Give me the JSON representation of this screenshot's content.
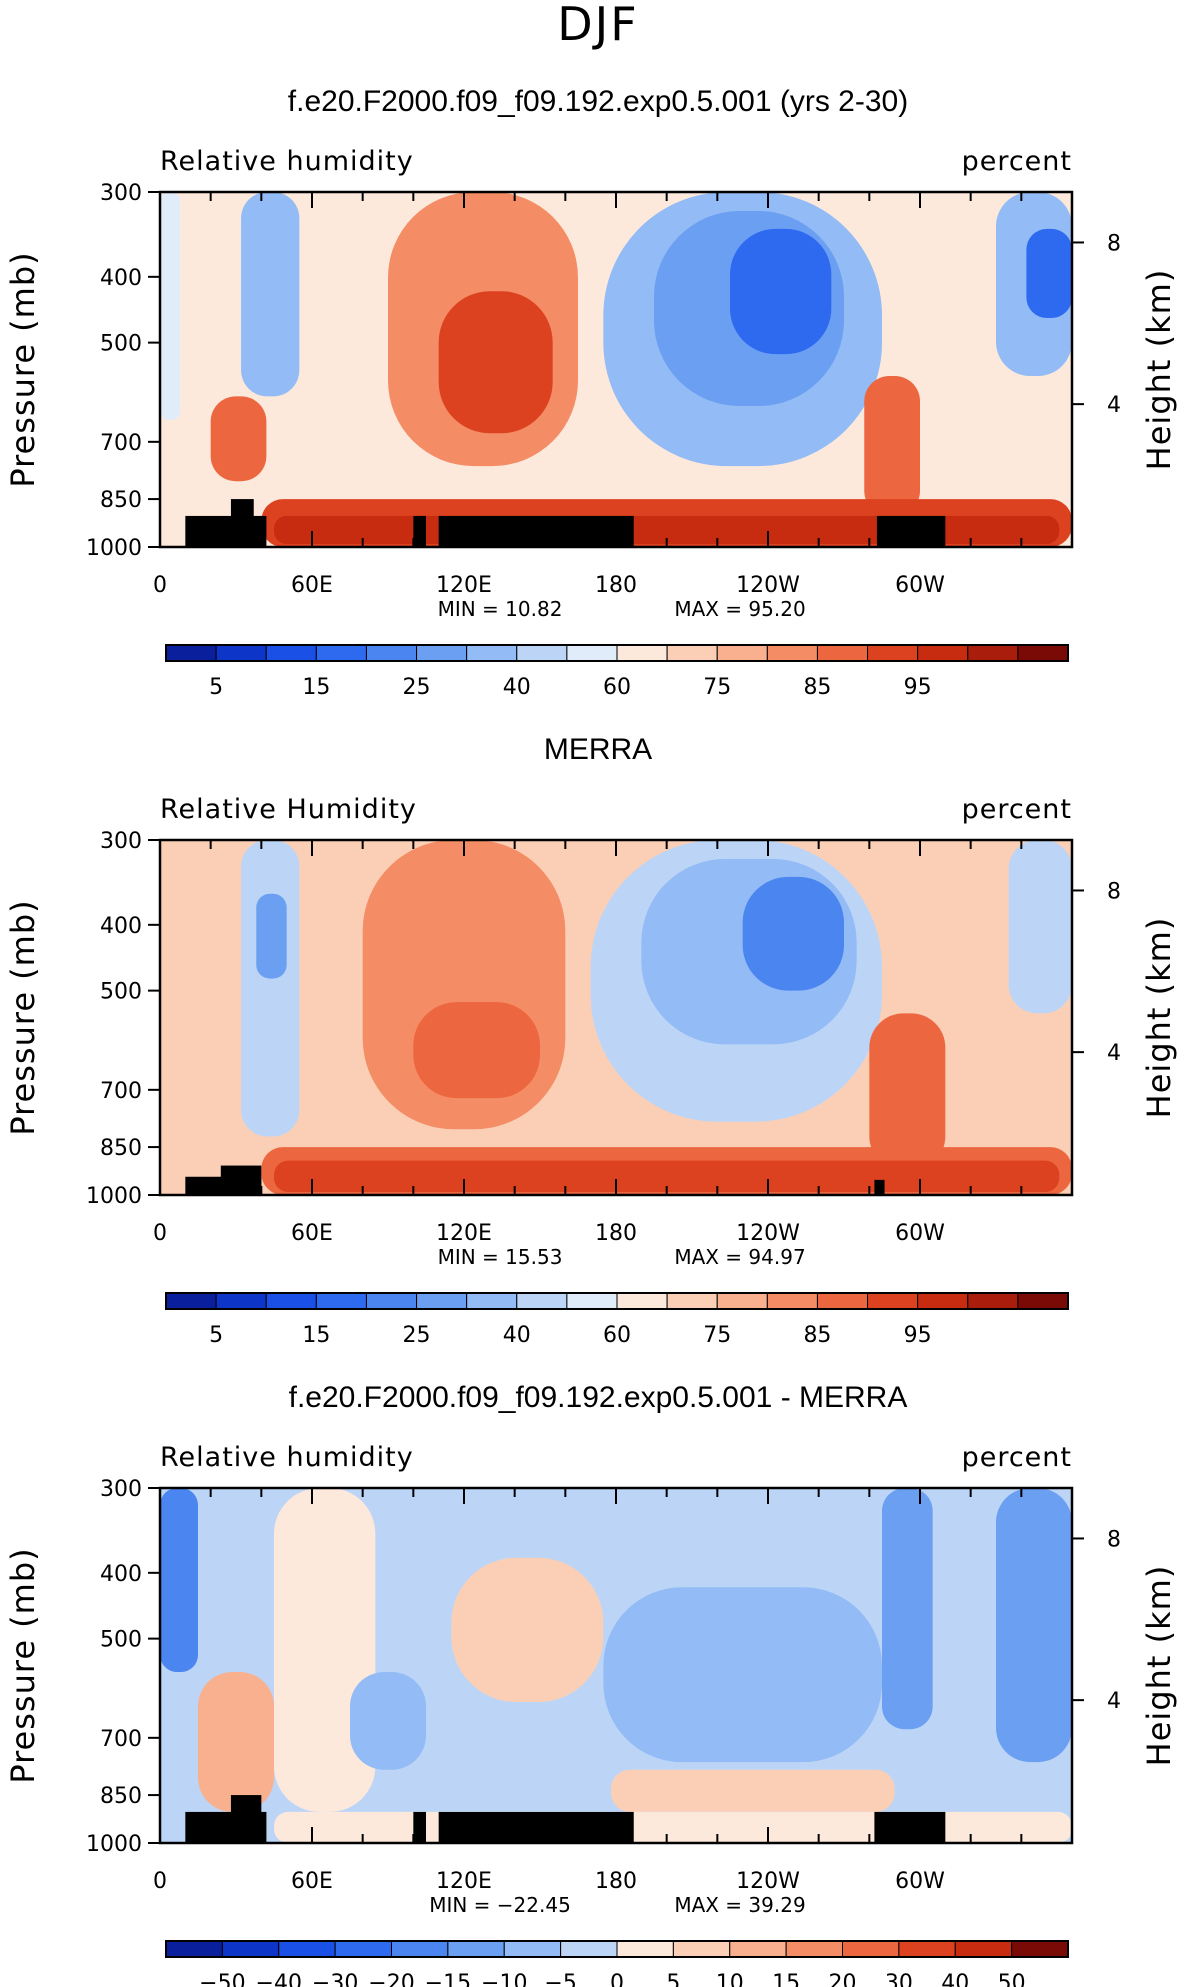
{
  "figure": {
    "season": "DJF"
  },
  "chart_data": [
    {
      "type": "heatmap",
      "title": "f.e20.F2000.f09_f09.192.exp0.5.001 (yrs 2-30)",
      "variable_label": "Relative humidity",
      "units_label": "percent",
      "ylabel": "Pressure (mb)",
      "y2label": "Height (km)",
      "x_ticks": [
        "0",
        "60E",
        "120E",
        "180",
        "120W",
        "60W"
      ],
      "x_tick_lon": [
        0,
        60,
        120,
        180,
        240,
        300
      ],
      "xlim": [
        0,
        360
      ],
      "y_ticks": [
        "300",
        "400",
        "500",
        "700",
        "850",
        "1000"
      ],
      "y_tick_p": [
        300,
        400,
        500,
        700,
        850,
        1000
      ],
      "ylim": [
        1000,
        300
      ],
      "y2_ticks": [
        "8",
        "4"
      ],
      "y2_tick_p": [
        356,
        616
      ],
      "min_text": "MIN = 10.82",
      "max_text": "MAX = 95.20",
      "colorbar_labels": [
        "5",
        "15",
        "25",
        "40",
        "60",
        "75",
        "85",
        "95"
      ],
      "colorbar_levels": [
        5,
        10,
        15,
        20,
        25,
        30,
        40,
        50,
        60,
        65,
        70,
        75,
        80,
        85,
        90,
        95
      ],
      "regions": [
        {
          "lon": [
            0,
            360
          ],
          "p": [
            300,
            1000
          ],
          "value": 60
        },
        {
          "lon": [
            0,
            8
          ],
          "p": [
            300,
            650
          ],
          "value": 50
        },
        {
          "lon": [
            32,
            55
          ],
          "p": [
            300,
            600
          ],
          "value": 35
        },
        {
          "lon": [
            20,
            42
          ],
          "p": [
            600,
            800
          ],
          "value": 80
        },
        {
          "lon": [
            90,
            165
          ],
          "p": [
            300,
            760
          ],
          "value": 75
        },
        {
          "lon": [
            110,
            155
          ],
          "p": [
            420,
            680
          ],
          "value": 85
        },
        {
          "lon": [
            175,
            285
          ],
          "p": [
            300,
            760
          ],
          "value": 35
        },
        {
          "lon": [
            195,
            270
          ],
          "p": [
            320,
            620
          ],
          "value": 25
        },
        {
          "lon": [
            225,
            265
          ],
          "p": [
            340,
            520
          ],
          "value": 15
        },
        {
          "lon": [
            330,
            360
          ],
          "p": [
            300,
            560
          ],
          "value": 30
        },
        {
          "lon": [
            342,
            360
          ],
          "p": [
            340,
            460
          ],
          "value": 15
        },
        {
          "lon": [
            278,
            300
          ],
          "p": [
            560,
            900
          ],
          "value": 80
        },
        {
          "lon": [
            40,
            360
          ],
          "p": [
            850,
            1000
          ],
          "value": 85
        },
        {
          "lon": [
            45,
            355
          ],
          "p": [
            900,
            990
          ],
          "value": 90
        }
      ],
      "topography": [
        {
          "lon": [
            10,
            42
          ],
          "p": [
            900,
            1000
          ]
        },
        {
          "lon": [
            28,
            37
          ],
          "p": [
            850,
            1000
          ]
        },
        {
          "lon": [
            100,
            105
          ],
          "p": [
            900,
            1000
          ]
        },
        {
          "lon": [
            110,
            187
          ],
          "p": [
            900,
            1000
          ]
        },
        {
          "lon": [
            283,
            310
          ],
          "p": [
            900,
            1000
          ]
        }
      ]
    },
    {
      "type": "heatmap",
      "title": "MERRA",
      "variable_label": "Relative Humidity",
      "units_label": "percent",
      "ylabel": "Pressure (mb)",
      "y2label": "Height (km)",
      "x_ticks": [
        "0",
        "60E",
        "120E",
        "180",
        "120W",
        "60W"
      ],
      "x_tick_lon": [
        0,
        60,
        120,
        180,
        240,
        300
      ],
      "xlim": [
        0,
        360
      ],
      "y_ticks": [
        "300",
        "400",
        "500",
        "700",
        "850",
        "1000"
      ],
      "y_tick_p": [
        300,
        400,
        500,
        700,
        850,
        1000
      ],
      "ylim": [
        1000,
        300
      ],
      "y2_ticks": [
        "8",
        "4"
      ],
      "y2_tick_p": [
        356,
        616
      ],
      "min_text": "MIN = 15.53",
      "max_text": "MAX = 94.97",
      "colorbar_labels": [
        "5",
        "15",
        "25",
        "40",
        "60",
        "75",
        "85",
        "95"
      ],
      "colorbar_levels": [
        5,
        10,
        15,
        20,
        25,
        30,
        40,
        50,
        60,
        65,
        70,
        75,
        80,
        85,
        90,
        95
      ],
      "regions": [
        {
          "lon": [
            0,
            360
          ],
          "p": [
            300,
            1000
          ],
          "value": 65
        },
        {
          "lon": [
            32,
            55
          ],
          "p": [
            300,
            820
          ],
          "value": 40
        },
        {
          "lon": [
            38,
            50
          ],
          "p": [
            360,
            480
          ],
          "value": 25
        },
        {
          "lon": [
            80,
            160
          ],
          "p": [
            300,
            800
          ],
          "value": 75
        },
        {
          "lon": [
            100,
            150
          ],
          "p": [
            520,
            720
          ],
          "value": 80
        },
        {
          "lon": [
            170,
            285
          ],
          "p": [
            300,
            780
          ],
          "value": 40
        },
        {
          "lon": [
            190,
            275
          ],
          "p": [
            320,
            600
          ],
          "value": 30
        },
        {
          "lon": [
            230,
            270
          ],
          "p": [
            340,
            500
          ],
          "value": 20
        },
        {
          "lon": [
            335,
            360
          ],
          "p": [
            300,
            540
          ],
          "value": 40
        },
        {
          "lon": [
            280,
            310
          ],
          "p": [
            540,
            920
          ],
          "value": 80
        },
        {
          "lon": [
            40,
            360
          ],
          "p": [
            850,
            1000
          ],
          "value": 80
        },
        {
          "lon": [
            45,
            355
          ],
          "p": [
            890,
            990
          ],
          "value": 85
        }
      ],
      "topography": [
        {
          "lon": [
            10,
            40
          ],
          "p": [
            940,
            1000
          ]
        },
        {
          "lon": [
            24,
            40
          ],
          "p": [
            905,
            1000
          ]
        },
        {
          "lon": [
            282,
            286
          ],
          "p": [
            950,
            1000
          ]
        }
      ]
    },
    {
      "type": "heatmap",
      "title": "f.e20.F2000.f09_f09.192.exp0.5.001 - MERRA",
      "variable_label": "Relative humidity",
      "units_label": "percent",
      "ylabel": "Pressure (mb)",
      "y2label": "Height (km)",
      "x_ticks": [
        "0",
        "60E",
        "120E",
        "180",
        "120W",
        "60W"
      ],
      "x_tick_lon": [
        0,
        60,
        120,
        180,
        240,
        300
      ],
      "xlim": [
        0,
        360
      ],
      "y_ticks": [
        "300",
        "400",
        "500",
        "700",
        "850",
        "1000"
      ],
      "y_tick_p": [
        300,
        400,
        500,
        700,
        850,
        1000
      ],
      "ylim": [
        1000,
        300
      ],
      "y2_ticks": [
        "8",
        "4"
      ],
      "y2_tick_p": [
        356,
        616
      ],
      "min_text": "MIN = −22.45",
      "max_text": "MAX = 39.29",
      "colorbar_labels": [
        "−50",
        "−40",
        "−30",
        "−20",
        "−15",
        "−10",
        "−5",
        "0",
        "5",
        "10",
        "15",
        "20",
        "30",
        "40",
        "50"
      ],
      "colorbar_levels": [
        -50,
        -40,
        -30,
        -20,
        -15,
        -10,
        -5,
        0,
        5,
        10,
        15,
        20,
        30,
        40,
        50
      ],
      "regions": [
        {
          "lon": [
            0,
            360
          ],
          "p": [
            300,
            1000
          ],
          "value": -2
        },
        {
          "lon": [
            0,
            15
          ],
          "p": [
            300,
            560
          ],
          "value": -20
        },
        {
          "lon": [
            15,
            45
          ],
          "p": [
            560,
            900
          ],
          "value": 10
        },
        {
          "lon": [
            45,
            85
          ],
          "p": [
            300,
            900
          ],
          "value": 3
        },
        {
          "lon": [
            75,
            105
          ],
          "p": [
            560,
            780
          ],
          "value": -7
        },
        {
          "lon": [
            115,
            175
          ],
          "p": [
            380,
            620
          ],
          "value": 7
        },
        {
          "lon": [
            175,
            285
          ],
          "p": [
            420,
            760
          ],
          "value": -7
        },
        {
          "lon": [
            285,
            305
          ],
          "p": [
            300,
            680
          ],
          "value": -15
        },
        {
          "lon": [
            330,
            360
          ],
          "p": [
            300,
            760
          ],
          "value": -15
        },
        {
          "lon": [
            178,
            290
          ],
          "p": [
            780,
            900
          ],
          "value": 5
        },
        {
          "lon": [
            45,
            360
          ],
          "p": [
            900,
            1000
          ],
          "value": 3
        }
      ],
      "topography": [
        {
          "lon": [
            10,
            42
          ],
          "p": [
            900,
            1000
          ]
        },
        {
          "lon": [
            28,
            40
          ],
          "p": [
            850,
            1000
          ]
        },
        {
          "lon": [
            100,
            105
          ],
          "p": [
            900,
            1000
          ]
        },
        {
          "lon": [
            110,
            187
          ],
          "p": [
            900,
            1000
          ]
        },
        {
          "lon": [
            282,
            310
          ],
          "p": [
            900,
            1000
          ]
        }
      ]
    }
  ],
  "colors": {
    "abs_palette": [
      "#0a1f9c",
      "#0d35c8",
      "#1a50e6",
      "#2d6af0",
      "#4a85f0",
      "#6b9ff2",
      "#93bbf5",
      "#bcd5f7",
      "#e0ecf9",
      "#fde9dc",
      "#fbcfb6",
      "#f8b08e",
      "#f48c65",
      "#ec6640",
      "#dc4220",
      "#c82c10",
      "#a81d0c",
      "#7a0a05"
    ],
    "diff_palette": [
      "#0a1f9c",
      "#0d35c8",
      "#1a50e6",
      "#2d6af0",
      "#4a85f0",
      "#6b9ff2",
      "#93bbf5",
      "#bcd5f7",
      "#fde9dc",
      "#fbcfb6",
      "#f8b08e",
      "#f48c65",
      "#ec6640",
      "#dc4220",
      "#c82c10",
      "#7a0a05"
    ],
    "topography": "#000000"
  }
}
